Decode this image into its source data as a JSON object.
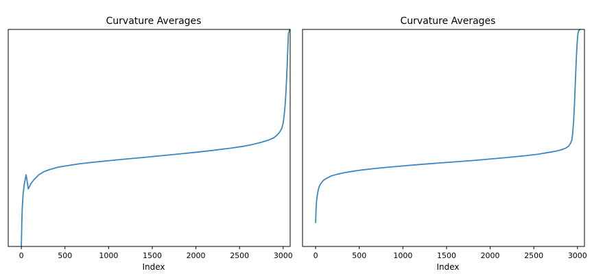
{
  "chart_data": [
    {
      "type": "line",
      "title": "Curvature Averages",
      "xlabel": "Index",
      "ylabel": "",
      "xlim": [
        -150,
        3080
      ],
      "ylim": [
        0,
        100
      ],
      "xticks": [
        0,
        500,
        1000,
        1500,
        2000,
        2500,
        3000
      ],
      "xtick_labels": [
        "0",
        "500",
        "1000",
        "1500",
        "2000",
        "2500",
        "3000"
      ],
      "yticks_visible": false,
      "grid": false,
      "color": "#3a86c0",
      "series": [
        {
          "x": [
            0,
            5,
            10,
            20,
            35,
            55,
            80,
            110,
            150,
            200,
            260,
            330,
            420,
            520,
            650,
            800,
            1000,
            1200,
            1400,
            1600,
            1800,
            2000,
            2200,
            2400,
            2550,
            2650,
            2750,
            2830,
            2890,
            2930,
            2960,
            2985,
            3000,
            3010,
            3020,
            3030,
            3040,
            3050,
            3060,
            3075
          ],
          "y": [
            0,
            10,
            17,
            24,
            29,
            33,
            26.5,
            29,
            31,
            33,
            34.5,
            35.5,
            36.5,
            37.2,
            38,
            38.7,
            39.5,
            40.3,
            41,
            41.8,
            42.6,
            43.4,
            44.3,
            45.3,
            46.2,
            47,
            48,
            49,
            50,
            51.3,
            52.7,
            54.5,
            57,
            60,
            64,
            70,
            78,
            88,
            98,
            100
          ]
        }
      ]
    },
    {
      "type": "line",
      "title": "Curvature Averages",
      "xlabel": "Index",
      "ylabel": "",
      "xlim": [
        -150,
        3080
      ],
      "ylim": [
        0,
        100
      ],
      "xticks": [
        0,
        500,
        1000,
        1500,
        2000,
        2500,
        3000
      ],
      "xtick_labels": [
        "0",
        "500",
        "1000",
        "1500",
        "2000",
        "2500",
        "3000"
      ],
      "yticks_visible": false,
      "grid": false,
      "color": "#3a86c0",
      "series": [
        {
          "x": [
            0,
            5,
            12,
            25,
            40,
            60,
            90,
            130,
            180,
            250,
            330,
            420,
            520,
            650,
            800,
            1000,
            1200,
            1400,
            1600,
            1800,
            2000,
            2200,
            2400,
            2550,
            2650,
            2750,
            2820,
            2870,
            2900,
            2920,
            2935,
            2945,
            2955,
            2965,
            2975,
            2985,
            2995,
            3005,
            3015,
            3030
          ],
          "y": [
            11,
            17,
            21.5,
            25,
            27.5,
            29,
            30.5,
            31.5,
            32.5,
            33.3,
            34,
            34.6,
            35.2,
            35.8,
            36.4,
            37.1,
            37.8,
            38.4,
            39,
            39.6,
            40.3,
            41,
            41.8,
            42.5,
            43.2,
            43.9,
            44.6,
            45.4,
            46.3,
            47.5,
            49,
            52,
            57,
            65,
            75,
            85,
            93,
            98,
            99.5,
            100
          ]
        }
      ]
    }
  ]
}
